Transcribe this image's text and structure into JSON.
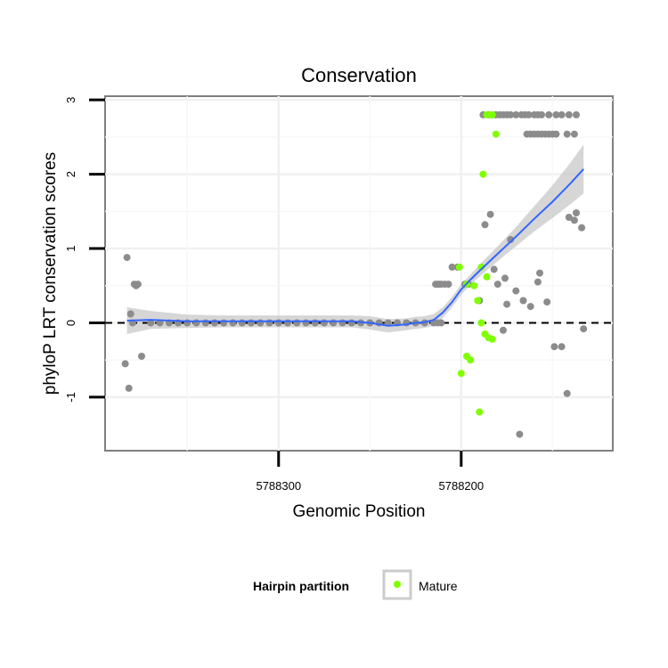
{
  "chart_data": {
    "type": "scatter",
    "title": "Conservation",
    "xlabel": "Genomic Position",
    "ylabel": "phyloP LRT conservation scores",
    "x_reversed": true,
    "xlim": [
      5788395,
      5788117
    ],
    "ylim": [
      -1.72,
      3.05
    ],
    "x_ticks": [
      5788300,
      5788200
    ],
    "x_tick_labels": [
      "5788300",
      "5788200"
    ],
    "y_ticks": [
      -1,
      0,
      1,
      2,
      3
    ],
    "y_tick_labels": [
      "-1",
      "0",
      "1",
      "2",
      "3"
    ],
    "reference_line": {
      "y": 0,
      "style": "dashed"
    },
    "legend": {
      "title": "Hairpin partition",
      "entries": [
        {
          "label": "Mature",
          "color": "#7fff00"
        }
      ]
    },
    "colors": {
      "other": "#8c8c8c",
      "mature": "#7fff00",
      "smooth": "#3366ff",
      "band": "#c8c8c8"
    },
    "series": [
      {
        "name": "Other",
        "color": "#8c8c8c",
        "points": [
          [
            5788383,
            0.88
          ],
          [
            5788381,
            0.12
          ],
          [
            5788380,
            0.0
          ],
          [
            5788379,
            0.52
          ],
          [
            5788378,
            0.5
          ],
          [
            5788377,
            0.52
          ],
          [
            5788384,
            -0.55
          ],
          [
            5788382,
            -0.88
          ],
          [
            5788375,
            -0.45
          ],
          [
            5788370,
            0.0
          ],
          [
            5788365,
            0.0
          ],
          [
            5788360,
            0.0
          ],
          [
            5788355,
            0.0
          ],
          [
            5788350,
            0.0
          ],
          [
            5788345,
            0.0
          ],
          [
            5788340,
            0.0
          ],
          [
            5788335,
            0.0
          ],
          [
            5788330,
            0.0
          ],
          [
            5788325,
            0.0
          ],
          [
            5788320,
            0.0
          ],
          [
            5788315,
            0.0
          ],
          [
            5788310,
            0.0
          ],
          [
            5788305,
            0.0
          ],
          [
            5788300,
            0.0
          ],
          [
            5788295,
            0.0
          ],
          [
            5788290,
            0.0
          ],
          [
            5788285,
            0.0
          ],
          [
            5788280,
            0.0
          ],
          [
            5788275,
            0.0
          ],
          [
            5788270,
            0.0
          ],
          [
            5788265,
            0.0
          ],
          [
            5788260,
            0.0
          ],
          [
            5788255,
            0.0
          ],
          [
            5788250,
            0.0
          ],
          [
            5788245,
            0.0
          ],
          [
            5788240,
            0.0
          ],
          [
            5788235,
            0.0
          ],
          [
            5788230,
            0.0
          ],
          [
            5788225,
            0.0
          ],
          [
            5788220,
            0.0
          ],
          [
            5788215,
            0.0
          ],
          [
            5788213,
            0.0
          ],
          [
            5788211,
            0.0
          ],
          [
            5788214,
            0.52
          ],
          [
            5788213,
            0.52
          ],
          [
            5788212,
            0.52
          ],
          [
            5788211,
            0.52
          ],
          [
            5788209,
            0.52
          ],
          [
            5788207,
            0.52
          ],
          [
            5788205,
            0.75
          ],
          [
            5788202,
            0.75
          ],
          [
            5788198,
            0.52
          ],
          [
            5788196,
            0.52
          ],
          [
            5788190,
            0.3
          ],
          [
            5788187,
            1.32
          ],
          [
            5788184,
            1.46
          ],
          [
            5788182,
            0.72
          ],
          [
            5788180,
            0.52
          ],
          [
            5788176,
            0.6
          ],
          [
            5788173,
            1.12
          ],
          [
            5788170,
            0.43
          ],
          [
            5788166,
            0.3
          ],
          [
            5788162,
            0.22
          ],
          [
            5788158,
            0.55
          ],
          [
            5788157,
            0.67
          ],
          [
            5788153,
            0.28
          ],
          [
            5788149,
            -0.32
          ],
          [
            5788145,
            -0.32
          ],
          [
            5788142,
            -0.95
          ],
          [
            5788141,
            1.42
          ],
          [
            5788138,
            1.38
          ],
          [
            5788137,
            1.48
          ],
          [
            5788134,
            1.28
          ],
          [
            5788133,
            -0.08
          ],
          [
            5788168,
            -1.5
          ],
          [
            5788175,
            0.25
          ],
          [
            5788177,
            -0.1
          ],
          [
            5788188,
            2.8
          ],
          [
            5788185,
            2.8
          ],
          [
            5788183,
            2.8
          ],
          [
            5788181,
            2.8
          ],
          [
            5788179,
            2.8
          ],
          [
            5788177,
            2.8
          ],
          [
            5788175,
            2.8
          ],
          [
            5788173,
            2.8
          ],
          [
            5788170,
            2.8
          ],
          [
            5788167,
            2.8
          ],
          [
            5788165,
            2.8
          ],
          [
            5788163,
            2.8
          ],
          [
            5788160,
            2.8
          ],
          [
            5788158,
            2.8
          ],
          [
            5788156,
            2.8
          ],
          [
            5788152,
            2.8
          ],
          [
            5788148,
            2.8
          ],
          [
            5788145,
            2.8
          ],
          [
            5788141,
            2.8
          ],
          [
            5788137,
            2.8
          ],
          [
            5788164,
            2.54
          ],
          [
            5788162,
            2.54
          ],
          [
            5788160,
            2.54
          ],
          [
            5788158,
            2.54
          ],
          [
            5788156,
            2.54
          ],
          [
            5788154,
            2.54
          ],
          [
            5788152,
            2.54
          ],
          [
            5788150,
            2.54
          ],
          [
            5788148,
            2.54
          ],
          [
            5788142,
            2.54
          ],
          [
            5788138,
            2.54
          ]
        ]
      },
      {
        "name": "Mature",
        "color": "#7fff00",
        "points": [
          [
            5788201,
            0.75
          ],
          [
            5788197,
            0.52
          ],
          [
            5788193,
            0.5
          ],
          [
            5788191,
            0.3
          ],
          [
            5788189,
            0.0
          ],
          [
            5788187,
            -0.15
          ],
          [
            5788185,
            -0.2
          ],
          [
            5788183,
            -0.22
          ],
          [
            5788200,
            -0.68
          ],
          [
            5788197,
            -0.45
          ],
          [
            5788195,
            -0.5
          ],
          [
            5788190,
            -1.2
          ],
          [
            5788189,
            0.75
          ],
          [
            5788186,
            0.62
          ],
          [
            5788188,
            2.0
          ],
          [
            5788186,
            2.8
          ],
          [
            5788184,
            2.8
          ],
          [
            5788183,
            2.8
          ],
          [
            5788181,
            2.54
          ]
        ]
      }
    ],
    "smooth": {
      "name": "smoothed fit",
      "x": [
        5788383,
        5788370,
        5788350,
        5788330,
        5788310,
        5788290,
        5788275,
        5788260,
        5788250,
        5788240,
        5788230,
        5788225,
        5788220,
        5788215,
        5788210,
        5788205,
        5788200,
        5788195,
        5788190,
        5788180,
        5788170,
        5788160,
        5788150,
        5788140,
        5788133
      ],
      "y": [
        0.03,
        0.04,
        0.02,
        0.02,
        0.02,
        0.02,
        0.02,
        0.02,
        0.0,
        -0.04,
        -0.02,
        0.0,
        0.01,
        0.04,
        0.14,
        0.28,
        0.45,
        0.58,
        0.7,
        0.93,
        1.16,
        1.4,
        1.63,
        1.88,
        2.07
      ],
      "band_width": [
        0.18,
        0.12,
        0.09,
        0.08,
        0.08,
        0.08,
        0.08,
        0.08,
        0.09,
        0.09,
        0.08,
        0.08,
        0.08,
        0.08,
        0.07,
        0.07,
        0.07,
        0.07,
        0.08,
        0.1,
        0.13,
        0.17,
        0.22,
        0.28,
        0.33
      ]
    }
  }
}
